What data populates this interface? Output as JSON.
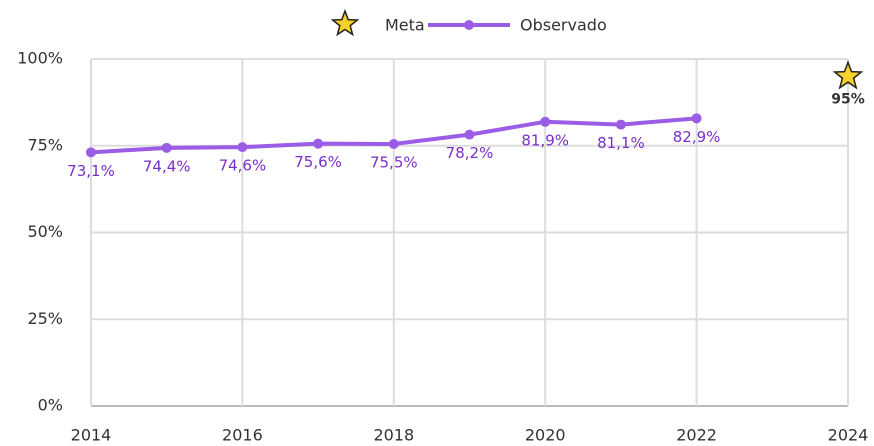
{
  "chart_data": {
    "type": "line",
    "xlim": [
      2014,
      2024
    ],
    "xticks": [
      2014,
      2016,
      2018,
      2020,
      2022,
      2024
    ],
    "ylim": [
      0,
      100
    ],
    "yticks": [
      {
        "value": 0,
        "label": "0%"
      },
      {
        "value": 25,
        "label": "25%"
      },
      {
        "value": 50,
        "label": "50%"
      },
      {
        "value": 75,
        "label": "75%"
      },
      {
        "value": 100,
        "label": "100%"
      }
    ],
    "grid": true,
    "legend": "top",
    "series": [
      {
        "name": "Meta",
        "color": "#f7d02c",
        "marker": "star",
        "x": [
          2024
        ],
        "values": [
          95
        ],
        "value_labels": [
          "95%"
        ]
      },
      {
        "name": "Observado",
        "color": "#9b5de5",
        "marker": "circle",
        "x": [
          2014,
          2015,
          2016,
          2017,
          2018,
          2019,
          2020,
          2021,
          2022
        ],
        "values": [
          73.1,
          74.4,
          74.6,
          75.6,
          75.5,
          78.2,
          81.9,
          81.1,
          82.9
        ],
        "value_labels": [
          "73,1%",
          "74,4%",
          "74,6%",
          "75,6%",
          "75,5%",
          "78,2%",
          "81,9%",
          "81,1%",
          "82,9%"
        ]
      }
    ]
  }
}
